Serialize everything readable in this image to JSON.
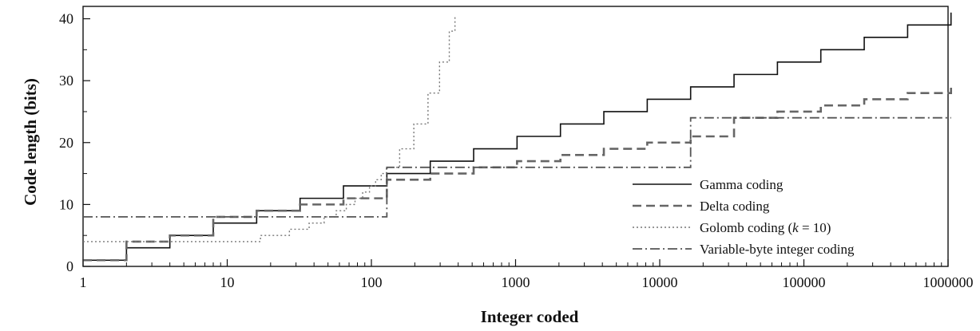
{
  "chart_data": {
    "type": "line",
    "title": "",
    "xlabel": "Integer coded",
    "ylabel": "Code length (bits)",
    "x_scale": "log",
    "xlim": [
      1,
      1000000
    ],
    "ylim": [
      0,
      42
    ],
    "x_ticks": [
      1,
      10,
      100,
      1000,
      10000,
      100000,
      1000000
    ],
    "x_tick_labels": [
      "1",
      "10",
      "100",
      "1000",
      "10000",
      "100000",
      "1000000"
    ],
    "y_ticks": [
      0,
      10,
      20,
      30,
      40
    ],
    "y_tick_labels": [
      "0",
      "10",
      "20",
      "30",
      "40"
    ],
    "grid": false,
    "legend_position": "lower-right",
    "series": [
      {
        "name": "Gamma coding",
        "style": "solid",
        "color": "#111111",
        "x": [
          1,
          2,
          4,
          8,
          16,
          32,
          64,
          128,
          256,
          512,
          1024,
          2048,
          4096,
          8192,
          16384,
          32768,
          65536,
          131072,
          262144,
          524288,
          1048576
        ],
        "y": [
          1,
          3,
          5,
          7,
          9,
          11,
          13,
          15,
          17,
          19,
          21,
          23,
          25,
          27,
          29,
          31,
          33,
          35,
          37,
          39,
          41
        ]
      },
      {
        "name": "Delta coding",
        "style": "dashed",
        "color": "#666666",
        "x": [
          1,
          2,
          4,
          8,
          16,
          32,
          64,
          128,
          256,
          512,
          1024,
          2048,
          4096,
          8192,
          16384,
          32768,
          65536,
          131072,
          262144,
          524288,
          1048576
        ],
        "y": [
          1,
          4,
          5,
          8,
          9,
          10,
          11,
          14,
          15,
          16,
          17,
          18,
          19,
          20,
          21,
          24,
          25,
          26,
          27,
          28,
          29
        ]
      },
      {
        "name": "Golomb coding (k = 10)",
        "name_parts": [
          "Golomb coding (",
          "k",
          " = 10)"
        ],
        "style": "dotted",
        "color": "#777777",
        "x": [
          1,
          7,
          17,
          27,
          37,
          47,
          57,
          67,
          77,
          87,
          97,
          107,
          117,
          127,
          157,
          197,
          247,
          297,
          347,
          380
        ],
        "y": [
          4,
          4,
          5,
          6,
          7,
          8,
          9,
          10,
          11,
          12,
          13,
          14,
          15,
          16,
          19,
          23,
          28,
          33,
          38,
          40.5
        ]
      },
      {
        "name": "Variable-byte integer coding",
        "style": "dashdot",
        "color": "#555555",
        "x": [
          1,
          128,
          16384,
          1048576
        ],
        "y": [
          8,
          16,
          24,
          24
        ]
      }
    ]
  }
}
